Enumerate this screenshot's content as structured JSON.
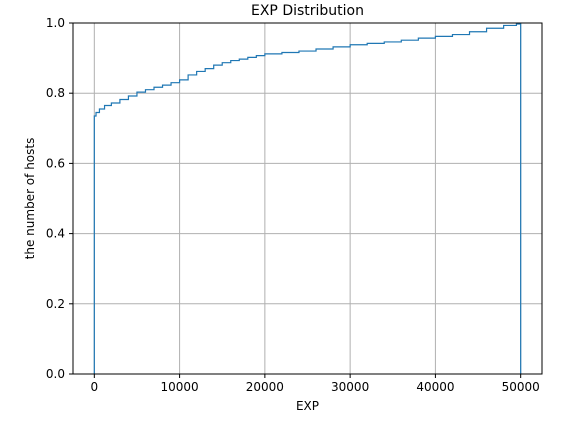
{
  "chart_data": {
    "type": "line",
    "title": "EXP Distribution",
    "xlabel": "EXP",
    "ylabel": "the number of hosts",
    "xlim": [
      -2500,
      52500
    ],
    "ylim": [
      0.0,
      1.0
    ],
    "xticks": [
      0,
      10000,
      20000,
      30000,
      40000,
      50000
    ],
    "xtick_labels": [
      "0",
      "10000",
      "20000",
      "30000",
      "40000",
      "50000"
    ],
    "yticks": [
      0.0,
      0.2,
      0.4,
      0.6,
      0.8,
      1.0
    ],
    "ytick_labels": [
      "0.0",
      "0.2",
      "0.4",
      "0.6",
      "0.8",
      "1.0"
    ],
    "grid": true,
    "step": true,
    "series": [
      {
        "color": "#1f77b4",
        "x": [
          0,
          0,
          200,
          600,
          1200,
          2000,
          3000,
          4000,
          5000,
          6000,
          7000,
          8000,
          9000,
          10000,
          11000,
          12000,
          13000,
          14000,
          15000,
          16000,
          17000,
          18000,
          19000,
          20000,
          22000,
          24000,
          26000,
          28000,
          30000,
          32000,
          34000,
          36000,
          38000,
          40000,
          42000,
          44000,
          46000,
          48000,
          49500,
          50000,
          50000
        ],
        "y": [
          0.0,
          0.735,
          0.745,
          0.755,
          0.765,
          0.772,
          0.782,
          0.792,
          0.803,
          0.81,
          0.817,
          0.823,
          0.83,
          0.838,
          0.852,
          0.862,
          0.87,
          0.88,
          0.887,
          0.893,
          0.897,
          0.902,
          0.907,
          0.912,
          0.916,
          0.92,
          0.926,
          0.932,
          0.938,
          0.942,
          0.946,
          0.951,
          0.957,
          0.962,
          0.967,
          0.975,
          0.985,
          0.993,
          0.997,
          1.0,
          0.0
        ]
      }
    ]
  }
}
